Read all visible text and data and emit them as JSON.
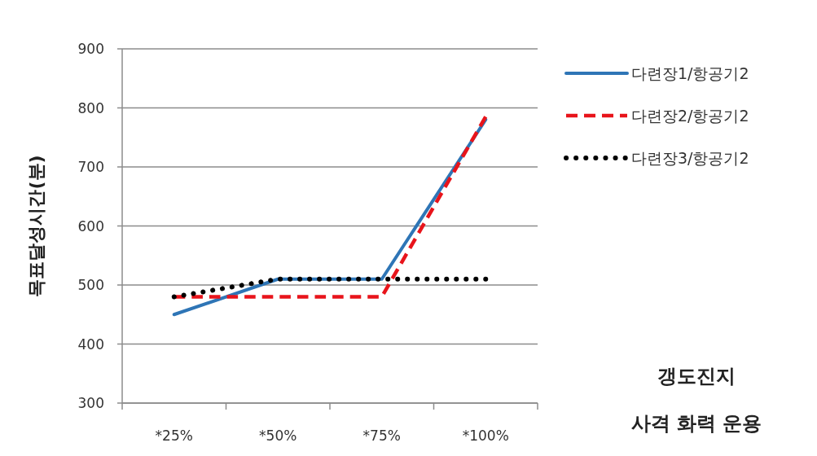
{
  "chart_data": {
    "type": "line",
    "ylabel": "목표달성시간(분)",
    "categories": [
      "*25%",
      "*50%",
      "*75%",
      "*100%"
    ],
    "series": [
      {
        "name": "다련장1/항공기2",
        "color": "#2e75b6",
        "line_style": "solid",
        "values": [
          450,
          510,
          510,
          780
        ]
      },
      {
        "name": "다련장2/항공기2",
        "color": "#e8141b",
        "line_style": "dashed",
        "values": [
          480,
          480,
          480,
          785
        ]
      },
      {
        "name": "다련장3/항공기2",
        "color": "#000000",
        "line_style": "dotted",
        "values": [
          480,
          510,
          510,
          510
        ]
      }
    ],
    "ylim": [
      300,
      900
    ],
    "yticks": [
      300,
      400,
      500,
      600,
      700,
      800,
      900
    ],
    "grid": "y",
    "legend": "right",
    "annotations": [
      "갱도진지",
      "사격 화력 운용"
    ]
  }
}
